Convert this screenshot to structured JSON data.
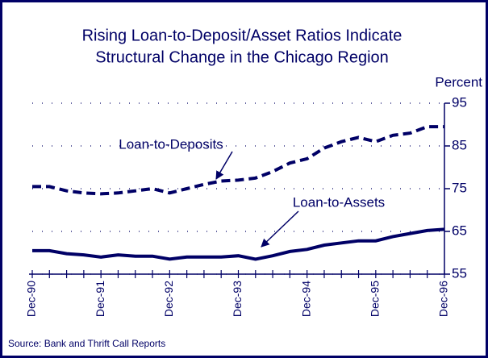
{
  "chart_data": {
    "type": "line",
    "title": [
      "Rising Loan-to-Deposit/Asset Ratios Indicate",
      "Structural Change in the Chicago Region"
    ],
    "y_axis_label": "Percent",
    "source": "Source:  Bank and Thrift Call Reports",
    "categories": [
      "Dec-90",
      null,
      null,
      null,
      "Dec-91",
      null,
      null,
      null,
      "Dec-92",
      null,
      null,
      null,
      "Dec-93",
      null,
      null,
      null,
      "Dec-94",
      null,
      null,
      null,
      "Dec-95",
      null,
      null,
      null,
      "Dec-96"
    ],
    "series": [
      {
        "name": "Loan-to-Deposits",
        "color": "#000066",
        "style": "dashed",
        "values": [
          75.5,
          75.5,
          74.5,
          74,
          73.8,
          74,
          74.5,
          75,
          74,
          75,
          76,
          76.8,
          77,
          77.5,
          79,
          81,
          82,
          84.5,
          86,
          87,
          86,
          87.5,
          88,
          89.5,
          89.5
        ]
      },
      {
        "name": "Loan-to-Assets",
        "color": "#000066",
        "style": "solid",
        "values": [
          60.5,
          60.5,
          59.8,
          59.5,
          59,
          59.5,
          59.2,
          59.2,
          58.5,
          59,
          59,
          59,
          59.3,
          58.5,
          59.3,
          60.3,
          60.8,
          61.8,
          62.3,
          62.8,
          62.8,
          63.8,
          64.5,
          65.2,
          65.5
        ]
      }
    ],
    "ylim": [
      55,
      95
    ],
    "yticks": [
      55,
      65,
      75,
      85,
      95
    ],
    "grid": true
  }
}
